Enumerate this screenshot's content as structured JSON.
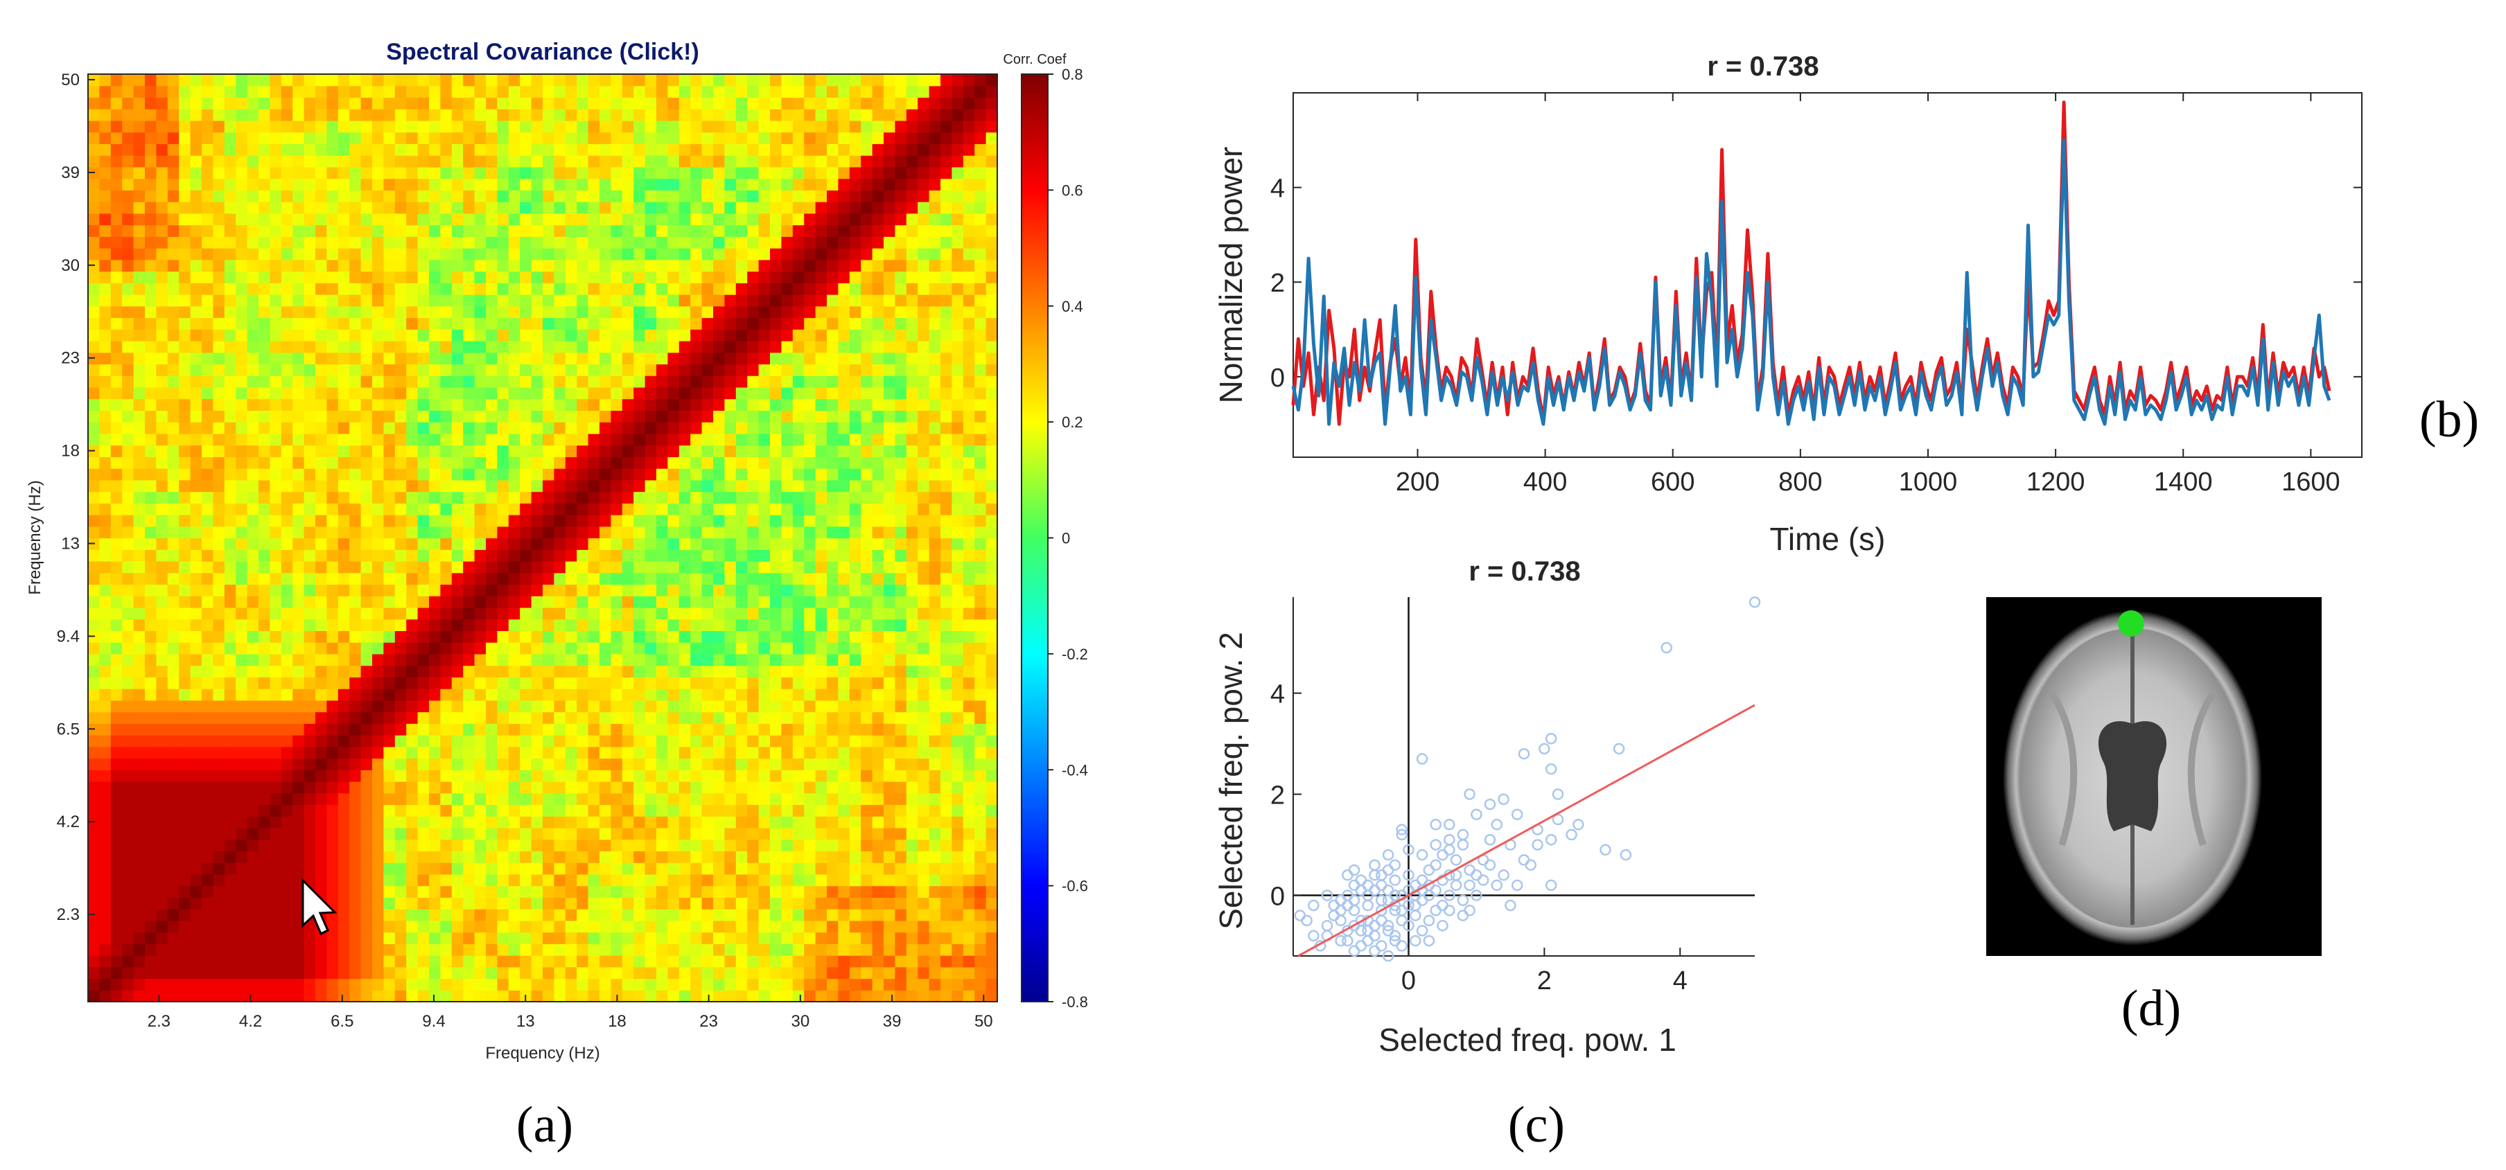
{
  "colors": {
    "red_series": "#e41a1c",
    "blue_series": "#1f77b4",
    "scatter_points": "#a9c6ee",
    "fit_line": "#f05a5a",
    "title_navy": "#0b1a6b",
    "marker_green": "#22dd22"
  },
  "panel_labels": {
    "a": "(a)",
    "b": "(b)",
    "c": "(c)",
    "d": "(d)"
  },
  "chart_data": [
    {
      "id": "spectral-covariance",
      "type": "heatmap",
      "title": "Spectral Covariance (Click!)",
      "xlabel": "Frequency (Hz)",
      "ylabel": "Frequency (Hz)",
      "x_ticks": [
        "2.3",
        "4.2",
        "6.5",
        "9.4",
        "13",
        "18",
        "23",
        "30",
        "39",
        "50"
      ],
      "y_ticks": [
        "2.3",
        "4.2",
        "6.5",
        "9.4",
        "13",
        "18",
        "23",
        "30",
        "39",
        "50"
      ],
      "colorbar": {
        "label": "Corr. Coef",
        "range": [
          -0.8,
          0.8
        ],
        "ticks": [
          "0.8",
          "0.6",
          "0.4",
          "0.2",
          "0",
          "-0.2",
          "-0.4",
          "-0.6",
          "-0.8"
        ]
      },
      "n_bins": 80,
      "diagonal_value": 0.8,
      "low_frequency_block_value": 0.72,
      "background_value": 0.22,
      "cursor": "pointer-arrow"
    },
    {
      "id": "normalized-power",
      "type": "line",
      "title": "r = 0.738",
      "xlabel": "Time (s)",
      "ylabel": "Normalized power",
      "xlim": [
        5,
        1680
      ],
      "ylim": [
        -1.7,
        6
      ],
      "x_ticks": [
        200,
        400,
        600,
        800,
        1000,
        1200,
        1400,
        1600
      ],
      "y_ticks": [
        0,
        2,
        4
      ],
      "sample_step": 8,
      "series": [
        {
          "name": "Selected freq. pow. 1",
          "color": "#e41a1c",
          "values": [
            -0.6,
            0.8,
            -0.2,
            0.5,
            -0.8,
            0.2,
            -0.5,
            1.4,
            0.6,
            -1.0,
            0.3,
            0.0,
            1.0,
            -0.5,
            0.2,
            -0.3,
            0.5,
            1.2,
            -0.7,
            0.3,
            0.8,
            -0.2,
            0.4,
            -0.6,
            2.9,
            0.4,
            -0.5,
            1.8,
            0.6,
            -0.3,
            0.2,
            0.0,
            -0.5,
            0.4,
            0.2,
            -0.4,
            0.8,
            0.1,
            -0.6,
            0.3,
            -0.5,
            0.2,
            -0.8,
            0.3,
            -0.5,
            0.0,
            -0.2,
            0.6,
            -0.3,
            -0.9,
            0.2,
            -0.4,
            0.0,
            -0.6,
            0.1,
            -0.4,
            0.3,
            -0.2,
            0.5,
            -0.6,
            0.0,
            0.8,
            -0.5,
            -0.3,
            0.2,
            0.0,
            -0.6,
            -0.3,
            0.7,
            -0.3,
            -0.6,
            2.1,
            -0.2,
            0.4,
            -0.5,
            1.8,
            -0.2,
            0.5,
            -0.4,
            2.5,
            0.3,
            1.8,
            2.2,
            0.1,
            4.8,
            0.7,
            1.5,
            0.3,
            0.9,
            3.1,
            1.7,
            -0.5,
            0.2,
            2.6,
            0.3,
            -0.6,
            0.2,
            -0.8,
            -0.3,
            0.0,
            -0.5,
            0.1,
            -0.7,
            0.4,
            -0.6,
            0.2,
            0.0,
            -0.6,
            -0.2,
            0.2,
            -0.4,
            0.3,
            -0.5,
            0.0,
            -0.3,
            0.2,
            -0.6,
            -0.1,
            0.5,
            -0.5,
            -0.2,
            0.0,
            -0.6,
            0.3,
            -0.2,
            -0.5,
            0.1,
            0.4,
            -0.4,
            -0.2,
            0.3,
            -0.6,
            1.0,
            0.3,
            -0.5,
            0.2,
            0.8,
            0.0,
            0.5,
            -0.2,
            -0.6,
            0.2,
            0.0,
            -0.4,
            2.0,
            0.2,
            0.3,
            0.9,
            1.6,
            1.3,
            1.6,
            5.8,
            2.0,
            -0.3,
            -0.5,
            -0.7,
            -0.2,
            0.2,
            -0.5,
            -0.8,
            0.0,
            -0.6,
            0.3,
            -0.7,
            -0.3,
            -0.5,
            0.2,
            -0.6,
            -0.4,
            -0.5,
            -0.7,
            -0.3,
            0.3,
            -0.5,
            -0.2,
            0.2,
            -0.6,
            -0.3,
            -0.5,
            -0.2,
            -0.7,
            -0.4,
            -0.5,
            0.2,
            -0.6,
            0.0,
            0.0,
            -0.2,
            0.4,
            -0.4,
            1.1,
            -0.5,
            0.5,
            -0.4,
            0.3,
            0.0,
            0.2,
            -0.4,
            0.2,
            -0.4,
            0.6,
            0.0,
            0.2,
            -0.3
          ]
        },
        {
          "name": "Selected freq. pow. 2",
          "color": "#1f77b4",
          "values": [
            -0.2,
            -0.7,
            0.2,
            2.5,
            0.7,
            -0.4,
            1.7,
            -1.0,
            0.3,
            -0.2,
            0.6,
            -0.6,
            0.3,
            -0.3,
            1.2,
            -0.2,
            0.3,
            0.5,
            -1.0,
            0.2,
            1.5,
            -0.3,
            0.0,
            -0.8,
            2.1,
            0.2,
            -0.8,
            1.2,
            0.4,
            -0.5,
            0.0,
            -0.2,
            -0.6,
            0.1,
            0.0,
            -0.5,
            0.4,
            -0.1,
            -0.8,
            0.1,
            -0.6,
            0.0,
            -0.5,
            0.1,
            -0.6,
            -0.2,
            -0.3,
            0.3,
            -0.5,
            -1.0,
            0.0,
            -0.6,
            -0.1,
            -0.7,
            0.0,
            -0.5,
            0.1,
            -0.3,
            0.4,
            -0.7,
            -0.2,
            0.6,
            -0.6,
            -0.4,
            0.1,
            -0.2,
            -0.7,
            -0.4,
            0.5,
            -0.5,
            -0.7,
            2.0,
            -0.4,
            0.2,
            -0.6,
            1.5,
            -0.4,
            0.3,
            -0.5,
            2.1,
            0.0,
            2.6,
            1.6,
            -0.2,
            3.7,
            0.3,
            1.0,
            0.0,
            0.6,
            2.2,
            1.3,
            -0.7,
            0.0,
            2.0,
            0.0,
            -0.8,
            -0.1,
            -1.0,
            -0.5,
            -0.2,
            -0.7,
            -0.1,
            -0.9,
            0.2,
            -0.8,
            0.0,
            -0.2,
            -0.8,
            -0.4,
            0.0,
            -0.6,
            0.1,
            -0.7,
            -0.2,
            -0.5,
            0.0,
            -0.8,
            -0.3,
            0.3,
            -0.7,
            -0.4,
            -0.2,
            -0.8,
            0.1,
            -0.4,
            -0.7,
            -0.1,
            0.2,
            -0.6,
            -0.4,
            0.1,
            -0.8,
            2.2,
            0.0,
            -0.7,
            0.0,
            0.6,
            -0.2,
            0.3,
            -0.4,
            -0.8,
            0.0,
            -0.2,
            -0.6,
            3.2,
            0.0,
            0.1,
            0.7,
            1.3,
            1.1,
            1.3,
            5.0,
            1.6,
            -0.5,
            -0.7,
            -0.9,
            -0.4,
            0.0,
            -0.7,
            -1.0,
            -0.2,
            -0.8,
            0.1,
            -0.9,
            -0.5,
            -0.7,
            0.0,
            -0.8,
            -0.6,
            -0.7,
            -0.9,
            -0.5,
            0.1,
            -0.7,
            -0.4,
            0.0,
            -0.8,
            -0.5,
            -0.7,
            -0.4,
            -0.9,
            -0.6,
            -0.7,
            0.0,
            -0.8,
            -0.2,
            -0.2,
            -0.4,
            0.2,
            -0.6,
            0.8,
            -0.7,
            0.3,
            -0.6,
            0.1,
            -0.2,
            0.0,
            -0.6,
            0.0,
            -0.6,
            0.4,
            1.3,
            -0.2,
            -0.5
          ]
        }
      ]
    },
    {
      "id": "power-scatter",
      "type": "scatter",
      "title": "r = 0.738",
      "xlabel": "Selected freq. pow. 1",
      "ylabel": "Selected freq. pow. 2",
      "xlim": [
        -1.7,
        5.1
      ],
      "ylim": [
        -1.2,
        5.9
      ],
      "x_ticks": [
        0,
        2,
        4
      ],
      "y_ticks": [
        0,
        2,
        4
      ],
      "fit": {
        "slope": 0.738,
        "intercept": 0.0
      },
      "points": [
        [
          5.1,
          5.8
        ],
        [
          3.8,
          4.9
        ],
        [
          3.1,
          2.9
        ],
        [
          2.1,
          3.1
        ],
        [
          2.0,
          2.9
        ],
        [
          1.7,
          2.8
        ],
        [
          2.1,
          2.5
        ],
        [
          0.2,
          2.7
        ],
        [
          2.2,
          2.0
        ],
        [
          1.4,
          1.9
        ],
        [
          0.9,
          2.0
        ],
        [
          1.2,
          1.8
        ],
        [
          2.5,
          1.4
        ],
        [
          1.0,
          1.6
        ],
        [
          0.6,
          1.4
        ],
        [
          1.2,
          1.1
        ],
        [
          1.5,
          1.0
        ],
        [
          2.1,
          1.1
        ],
        [
          1.9,
          1.0
        ],
        [
          2.9,
          0.9
        ],
        [
          3.2,
          0.8
        ],
        [
          0.4,
          1.4
        ],
        [
          0.6,
          0.9
        ],
        [
          0.8,
          1.0
        ],
        [
          0.9,
          0.5
        ],
        [
          0.6,
          0.4
        ],
        [
          0.4,
          0.6
        ],
        [
          0.2,
          0.3
        ],
        [
          0.1,
          0.2
        ],
        [
          0.3,
          0.0
        ],
        [
          0.7,
          0.2
        ],
        [
          1.1,
          0.3
        ],
        [
          1.3,
          0.2
        ],
        [
          1.6,
          0.2
        ],
        [
          1.8,
          0.6
        ],
        [
          2.1,
          0.2
        ],
        [
          1.5,
          -0.2
        ],
        [
          0.9,
          -0.3
        ],
        [
          0.5,
          -0.2
        ],
        [
          0.1,
          -0.4
        ],
        [
          -0.1,
          0.0
        ],
        [
          -0.2,
          0.3
        ],
        [
          -0.3,
          0.5
        ],
        [
          -0.5,
          0.4
        ],
        [
          -0.7,
          0.1
        ],
        [
          -0.9,
          0.4
        ],
        [
          -1.0,
          -0.1
        ],
        [
          -0.8,
          -0.3
        ],
        [
          -0.6,
          -0.2
        ],
        [
          -0.4,
          -0.1
        ],
        [
          -0.2,
          -0.3
        ],
        [
          -0.1,
          -0.5
        ],
        [
          -0.3,
          -0.7
        ],
        [
          -0.5,
          -0.6
        ],
        [
          -0.7,
          -0.5
        ],
        [
          -0.9,
          -0.7
        ],
        [
          -1.1,
          -0.4
        ],
        [
          -1.2,
          -0.8
        ],
        [
          -1.0,
          -0.9
        ],
        [
          -0.6,
          -0.9
        ],
        [
          -0.4,
          -1.0
        ],
        [
          -0.2,
          -0.8
        ],
        [
          0.0,
          -0.6
        ],
        [
          0.2,
          -0.7
        ],
        [
          0.3,
          -0.9
        ],
        [
          -0.8,
          -1.1
        ],
        [
          -1.3,
          -1.0
        ],
        [
          -1.5,
          -0.5
        ],
        [
          -1.4,
          -0.2
        ],
        [
          -1.2,
          0.0
        ],
        [
          -0.6,
          0.0
        ],
        [
          -0.3,
          0.1
        ],
        [
          0.0,
          0.1
        ],
        [
          0.2,
          -0.1
        ],
        [
          0.4,
          -0.3
        ],
        [
          -0.1,
          1.2
        ],
        [
          -0.1,
          1.3
        ],
        [
          0.0,
          0.9
        ],
        [
          -0.3,
          0.8
        ],
        [
          -0.5,
          0.6
        ],
        [
          -0.8,
          0.2
        ],
        [
          -0.9,
          -0.2
        ],
        [
          -0.7,
          -0.7
        ],
        [
          -0.5,
          -1.1
        ],
        [
          -0.3,
          -1.2
        ],
        [
          -0.1,
          -1.0
        ],
        [
          0.1,
          -0.9
        ],
        [
          0.5,
          -0.6
        ],
        [
          0.8,
          -0.4
        ],
        [
          1.0,
          0.0
        ],
        [
          1.2,
          0.6
        ],
        [
          0.7,
          0.7
        ],
        [
          0.5,
          0.8
        ],
        [
          0.3,
          0.5
        ],
        [
          0.0,
          0.4
        ],
        [
          -0.2,
          0.0
        ],
        [
          -0.4,
          -0.3
        ],
        [
          -0.6,
          -0.5
        ],
        [
          -0.8,
          -0.6
        ],
        [
          -1.0,
          -0.5
        ],
        [
          -1.1,
          -0.2
        ],
        [
          -0.9,
          0.0
        ],
        [
          -0.7,
          0.3
        ],
        [
          -0.4,
          0.2
        ],
        [
          -0.2,
          -0.2
        ],
        [
          0.1,
          -0.2
        ],
        [
          0.3,
          0.2
        ],
        [
          0.6,
          0.0
        ],
        [
          0.8,
          -0.1
        ],
        [
          1.0,
          0.4
        ],
        [
          1.4,
          0.4
        ],
        [
          1.7,
          0.7
        ],
        [
          1.9,
          1.3
        ],
        [
          2.2,
          1.5
        ],
        [
          2.4,
          1.2
        ],
        [
          0.6,
          1.1
        ],
        [
          0.4,
          1.0
        ],
        [
          0.2,
          0.8
        ],
        [
          -0.2,
          0.6
        ],
        [
          -0.4,
          0.4
        ],
        [
          -0.6,
          0.2
        ],
        [
          -0.8,
          -0.1
        ],
        [
          -1.0,
          -0.3
        ],
        [
          -1.2,
          -0.6
        ],
        [
          -1.4,
          -0.8
        ],
        [
          -0.9,
          -0.9
        ],
        [
          -0.7,
          -1.0
        ],
        [
          -0.5,
          -0.8
        ],
        [
          -0.3,
          -0.6
        ],
        [
          -0.1,
          -0.3
        ],
        [
          0.1,
          0.0
        ],
        [
          0.3,
          -0.5
        ],
        [
          0.6,
          -0.3
        ],
        [
          0.9,
          0.2
        ],
        [
          1.1,
          0.7
        ],
        [
          1.3,
          1.4
        ],
        [
          1.6,
          1.6
        ],
        [
          0.8,
          1.2
        ],
        [
          0.5,
          0.3
        ],
        [
          -1.6,
          -0.4
        ],
        [
          -0.4,
          -0.5
        ],
        [
          -0.6,
          -0.7
        ],
        [
          -0.2,
          -0.9
        ],
        [
          0.0,
          -0.2
        ],
        [
          0.2,
          0.1
        ],
        [
          -0.8,
          0.5
        ],
        [
          -0.5,
          0.1
        ],
        [
          -0.3,
          -0.1
        ],
        [
          0.4,
          0.1
        ],
        [
          0.7,
          0.4
        ]
      ]
    }
  ],
  "brain_image": {
    "marker": "green electrode marker at frontal midline"
  }
}
